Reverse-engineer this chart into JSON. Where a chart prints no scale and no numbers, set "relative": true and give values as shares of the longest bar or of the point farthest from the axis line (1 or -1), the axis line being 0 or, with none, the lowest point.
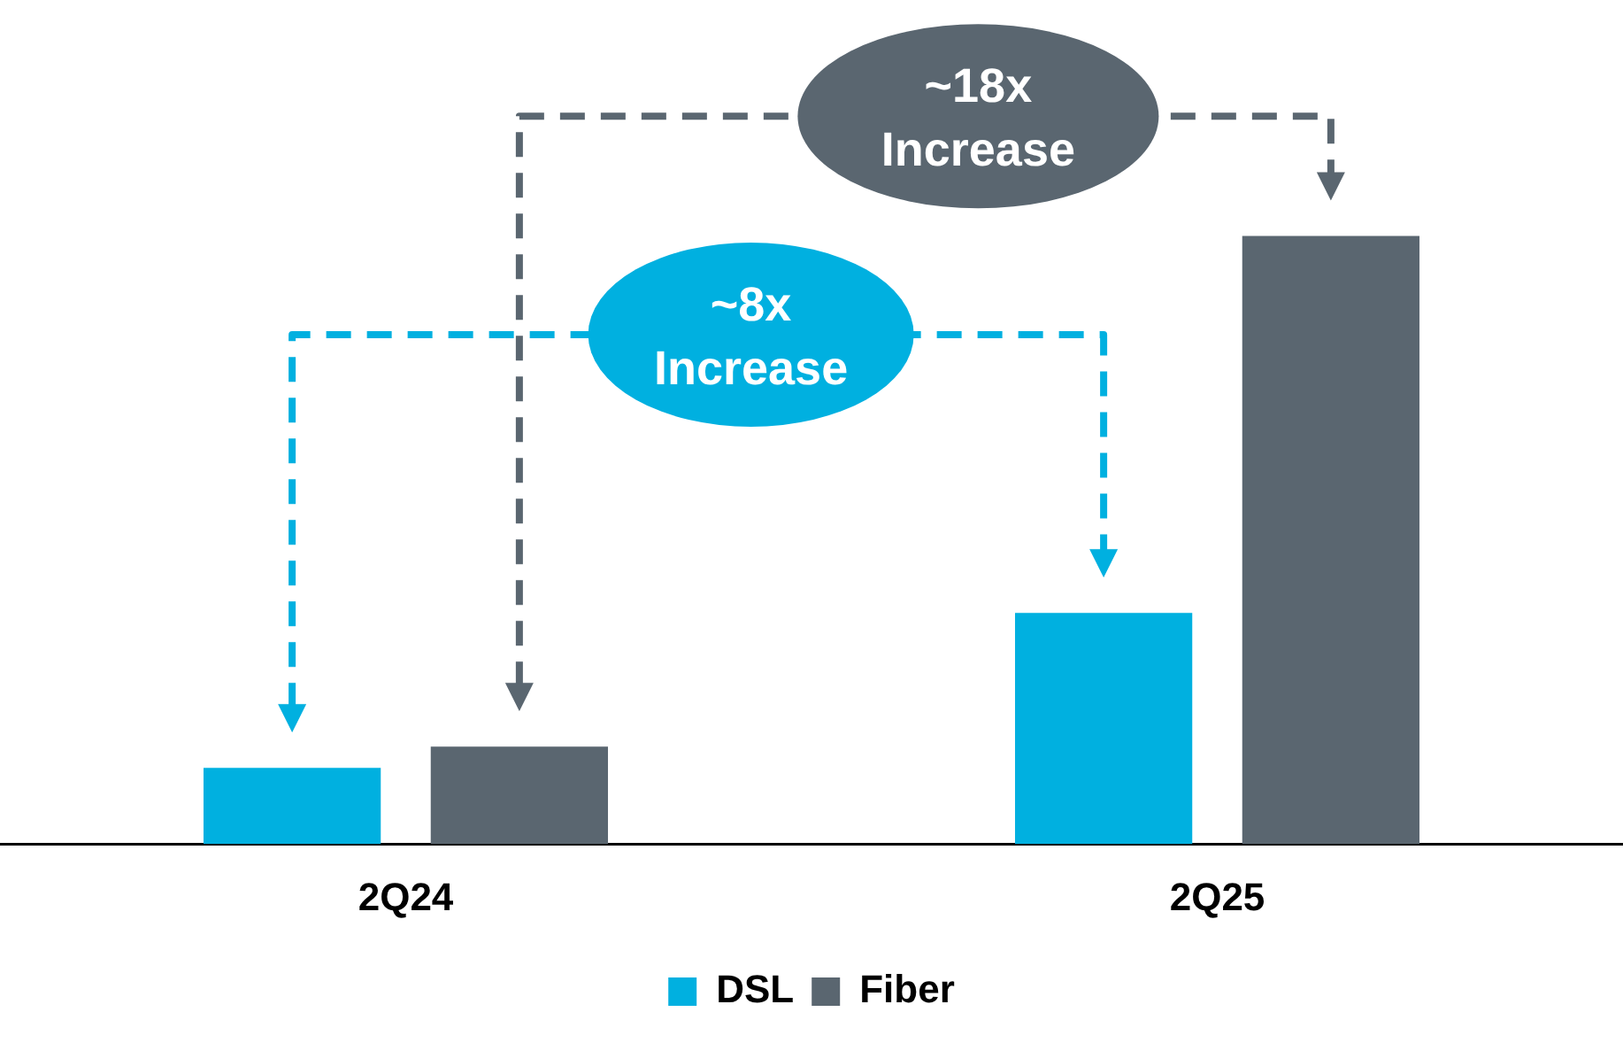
{
  "chart_data": {
    "type": "bar",
    "relative": true,
    "categories": [
      "2Q24",
      "2Q25"
    ],
    "series": [
      {
        "name": "DSL",
        "color": "#00b0e0",
        "values": [
          0.125,
          0.38
        ]
      },
      {
        "name": "Fiber",
        "color": "#5a6670",
        "values": [
          0.16,
          1.0
        ]
      }
    ],
    "annotations": [
      "~8x Increase",
      "~18x Increase"
    ],
    "legend": "bottom",
    "grid": false
  }
}
